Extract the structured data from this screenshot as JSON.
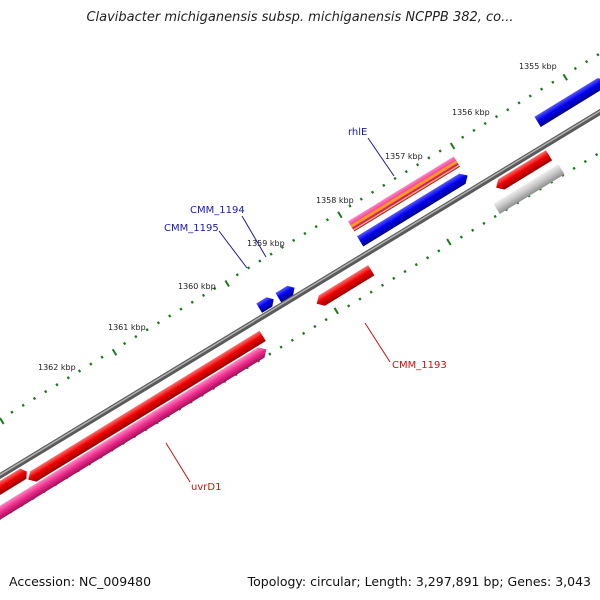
{
  "title": "Clavibacter michiganensis subsp. michiganensis NCPPB 382, co...",
  "footer": {
    "accession": "Accession: NC_009480",
    "summary": "Topology: circular; Length: 3,297,891 bp; Genes: 3,043"
  },
  "colors": {
    "backbone": "#7a7a7a",
    "forward_gene": "#0000ee",
    "reverse_gene": "#ee0000",
    "rna_gene": "#ee2a8a",
    "pseudogene": "#c0c0c0",
    "ticks": "#1a7a1a",
    "label_forward": "#1a1aaa",
    "label_reverse": "#cc1111"
  },
  "scale_labels": [
    "1355 kbp",
    "1356 kbp",
    "1357 kbp",
    "1358 kbp",
    "1359 kbp",
    "1360 kbp",
    "1361 kbp",
    "1362 kbp"
  ],
  "gene_labels": {
    "rhlE": "rhlE",
    "cmm1194": "CMM_1194",
    "cmm1195": "CMM_1195",
    "cmm1193": "CMM_1193",
    "uvrD1": "uvrD1"
  }
}
